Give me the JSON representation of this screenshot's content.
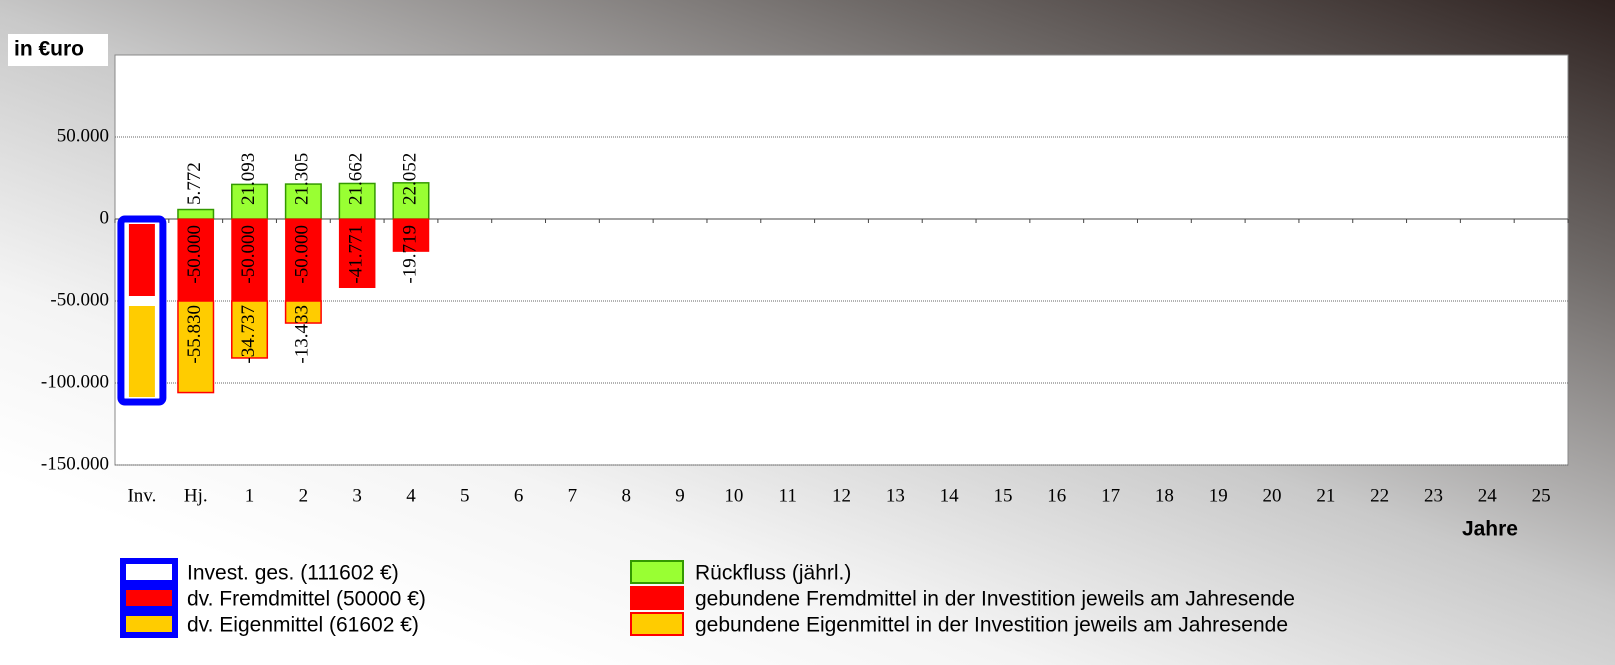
{
  "chart_data": {
    "type": "bar",
    "y_label": "in €uro",
    "x_label": "Jahre",
    "categories": [
      "Inv.",
      "Hj.",
      "1",
      "2",
      "3",
      "4",
      "5",
      "6",
      "7",
      "8",
      "9",
      "10",
      "11",
      "12",
      "13",
      "14",
      "15",
      "16",
      "17",
      "18",
      "19",
      "20",
      "21",
      "22",
      "23",
      "24",
      "25"
    ],
    "ylim": [
      -150000,
      100000
    ],
    "yticks": [
      {
        "value": -150000,
        "label": "-150.000"
      },
      {
        "value": -100000,
        "label": "-100.000"
      },
      {
        "value": -50000,
        "label": "-50.000"
      },
      0,
      {
        "value": 50000,
        "label": "50.000"
      }
    ],
    "grid": true,
    "series": [
      {
        "name": "Invest. ges. (111602 €)",
        "color": "#ffffff",
        "border": "#0000ff",
        "values": [
          -111602,
          null,
          null,
          null,
          null,
          null,
          null,
          null,
          null,
          null,
          null,
          null,
          null,
          null,
          null,
          null,
          null,
          null,
          null,
          null,
          null,
          null,
          null,
          null,
          null,
          null,
          null
        ]
      },
      {
        "name": "dv. Fremdmittel (50000 €)",
        "color": "#ff0000",
        "border": "#0000ff",
        "values": [
          -50000,
          null,
          null,
          null,
          null,
          null,
          null,
          null,
          null,
          null,
          null,
          null,
          null,
          null,
          null,
          null,
          null,
          null,
          null,
          null,
          null,
          null,
          null,
          null,
          null,
          null,
          null
        ]
      },
      {
        "name": "dv. Eigenmittel (61602 €)",
        "color": "#ffcc00",
        "border": "#0000ff",
        "values": [
          -61602,
          null,
          null,
          null,
          null,
          null,
          null,
          null,
          null,
          null,
          null,
          null,
          null,
          null,
          null,
          null,
          null,
          null,
          null,
          null,
          null,
          null,
          null,
          null,
          null,
          null,
          null
        ]
      },
      {
        "name": "Rückfluss (jährl.)",
        "color": "#99ff33",
        "border": "#339900",
        "values": [
          null,
          5772,
          21093,
          21305,
          21662,
          22052,
          null,
          null,
          null,
          null,
          null,
          null,
          null,
          null,
          null,
          null,
          null,
          null,
          null,
          null,
          null,
          null,
          null,
          null,
          null,
          null,
          null
        ],
        "value_labels": [
          null,
          "5.772",
          "21.093",
          "21.305",
          "21.662",
          "22.052",
          null,
          null,
          null,
          null,
          null,
          null,
          null,
          null,
          null,
          null,
          null,
          null,
          null,
          null,
          null,
          null,
          null,
          null,
          null,
          null,
          null
        ]
      },
      {
        "name": "gebundene Fremdmittel in der Investition jeweils am Jahresende",
        "color": "#ff0000",
        "border": "#ff0000",
        "values": [
          null,
          -50000,
          -50000,
          -50000,
          -41771,
          -19719,
          null,
          null,
          null,
          null,
          null,
          null,
          null,
          null,
          null,
          null,
          null,
          null,
          null,
          null,
          null,
          null,
          null,
          null,
          null,
          null,
          null
        ],
        "value_labels": [
          null,
          "-50.000",
          "-50.000",
          "-50.000",
          "-41.771",
          "-19.719",
          null,
          null,
          null,
          null,
          null,
          null,
          null,
          null,
          null,
          null,
          null,
          null,
          null,
          null,
          null,
          null,
          null,
          null,
          null,
          null,
          null
        ]
      },
      {
        "name": "gebundene Eigenmittel in der Investition jeweils am Jahresende",
        "color": "#ffcc00",
        "border": "#ff0000",
        "values": [
          null,
          -55830,
          -34737,
          -13433,
          null,
          null,
          null,
          null,
          null,
          null,
          null,
          null,
          null,
          null,
          null,
          null,
          null,
          null,
          null,
          null,
          null,
          null,
          null,
          null,
          null,
          null,
          null
        ],
        "value_labels": [
          null,
          "-55.830",
          "-34.737",
          "-13.433",
          null,
          null,
          null,
          null,
          null,
          null,
          null,
          null,
          null,
          null,
          null,
          null,
          null,
          null,
          null,
          null,
          null,
          null,
          null,
          null,
          null,
          null,
          null
        ]
      }
    ]
  }
}
